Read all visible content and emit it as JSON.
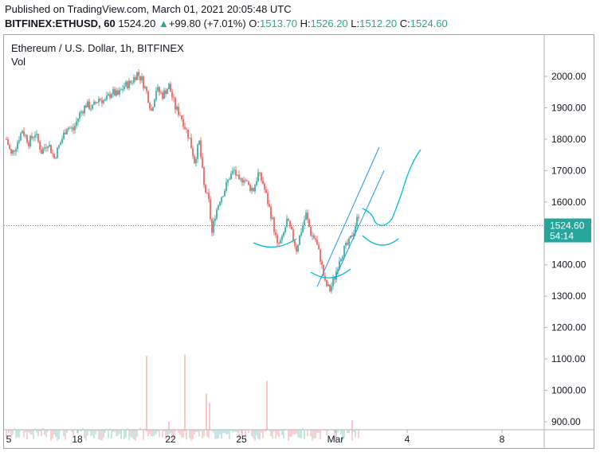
{
  "header": {
    "published": "Published on TradingView.com, March 01, 2021 20:05:48 UTC",
    "symbol": "BITFINEX:ETHUSD, 60",
    "price": "1524.20",
    "change_arrow": "▲",
    "change": "+99.80 (+7.01%)",
    "o_label": "O:",
    "o": "1513.70",
    "h_label": "H:",
    "h": "1526.20",
    "l_label": "L:",
    "l": "1512.20",
    "c_label": "C:",
    "c": "1524.60"
  },
  "legend": {
    "title": "Ethereum / U.S. Dollar, 1h, BITFINEX",
    "volume": "Vol"
  },
  "colors": {
    "up": "#26a69a",
    "down": "#ef5350",
    "price_label_bg": "#26a69a",
    "drawing": "#2196f3",
    "drawing_cyan": "#00bcd4",
    "axis_text": "#131722"
  },
  "chart_data": {
    "type": "candlestick",
    "x_tick_labels": [
      "5",
      "18",
      "22",
      "25",
      "Mar",
      "4",
      "8"
    ],
    "y_tick_labels": [
      "2000.00",
      "1900.00",
      "1800.00",
      "1700.00",
      "1600.00",
      "1500.00",
      "1400.00",
      "1300.00",
      "1200.00",
      "1100.00",
      "1000.00",
      "900.00"
    ],
    "ylim": [
      830,
      2020
    ],
    "current_price_label": "1524.60",
    "countdown_label": "54:14",
    "price_path": [
      [
        0,
        1800
      ],
      [
        6,
        1750
      ],
      [
        12,
        1780
      ],
      [
        20,
        1830
      ],
      [
        28,
        1790
      ],
      [
        36,
        1820
      ],
      [
        44,
        1760
      ],
      [
        52,
        1790
      ],
      [
        60,
        1740
      ],
      [
        68,
        1790
      ],
      [
        76,
        1840
      ],
      [
        84,
        1830
      ],
      [
        92,
        1880
      ],
      [
        100,
        1910
      ],
      [
        108,
        1900
      ],
      [
        116,
        1930
      ],
      [
        124,
        1920
      ],
      [
        132,
        1950
      ],
      [
        140,
        1940
      ],
      [
        148,
        1970
      ],
      [
        156,
        1980
      ],
      [
        164,
        2010
      ],
      [
        170,
        1990
      ],
      [
        176,
        1950
      ],
      [
        182,
        1890
      ],
      [
        188,
        1960
      ],
      [
        196,
        1940
      ],
      [
        204,
        1970
      ],
      [
        212,
        1900
      ],
      [
        218,
        1880
      ],
      [
        224,
        1840
      ],
      [
        230,
        1800
      ],
      [
        236,
        1730
      ],
      [
        242,
        1790
      ],
      [
        248,
        1650
      ],
      [
        254,
        1600
      ],
      [
        258,
        1500
      ],
      [
        262,
        1560
      ],
      [
        268,
        1610
      ],
      [
        274,
        1640
      ],
      [
        280,
        1680
      ],
      [
        286,
        1700
      ],
      [
        292,
        1660
      ],
      [
        298,
        1680
      ],
      [
        304,
        1650
      ],
      [
        310,
        1640
      ],
      [
        316,
        1690
      ],
      [
        322,
        1660
      ],
      [
        328,
        1600
      ],
      [
        334,
        1540
      ],
      [
        340,
        1460
      ],
      [
        346,
        1480
      ],
      [
        352,
        1540
      ],
      [
        358,
        1500
      ],
      [
        364,
        1450
      ],
      [
        370,
        1510
      ],
      [
        376,
        1560
      ],
      [
        382,
        1500
      ],
      [
        388,
        1480
      ],
      [
        394,
        1420
      ],
      [
        400,
        1340
      ],
      [
        406,
        1320
      ],
      [
        412,
        1360
      ],
      [
        418,
        1420
      ],
      [
        424,
        1450
      ],
      [
        430,
        1470
      ],
      [
        436,
        1510
      ],
      [
        442,
        1560
      ],
      [
        448,
        1525
      ]
    ],
    "volume_spikes": [
      [
        184,
        1110
      ],
      [
        232,
        1115
      ],
      [
        335,
        1030
      ],
      [
        259,
        990
      ],
      [
        263,
        960
      ],
      [
        442,
        905
      ],
      [
        212,
        900
      ]
    ]
  }
}
